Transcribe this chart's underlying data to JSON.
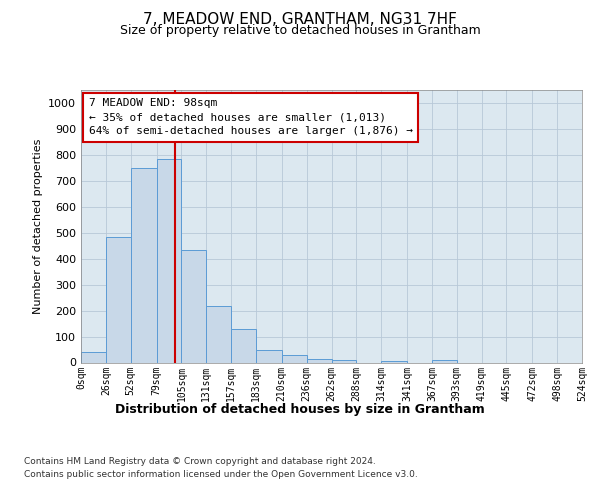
{
  "title": "7, MEADOW END, GRANTHAM, NG31 7HF",
  "subtitle": "Size of property relative to detached houses in Grantham",
  "xlabel": "Distribution of detached houses by size in Grantham",
  "ylabel": "Number of detached properties",
  "footer_line1": "Contains HM Land Registry data © Crown copyright and database right 2024.",
  "footer_line2": "Contains public sector information licensed under the Open Government Licence v3.0.",
  "bin_edges": [
    0,
    26,
    52,
    79,
    105,
    131,
    157,
    183,
    210,
    236,
    262,
    288,
    314,
    341,
    367,
    393,
    419,
    445,
    472,
    498,
    524
  ],
  "bar_heights": [
    40,
    485,
    750,
    785,
    435,
    218,
    128,
    50,
    27,
    15,
    10,
    0,
    7,
    0,
    8,
    0,
    0,
    0,
    0,
    0
  ],
  "bar_color": "#c8d8e8",
  "bar_edge_color": "#5b9bd5",
  "property_size": 98,
  "vline_color": "#cc0000",
  "annotation_line1": "7 MEADOW END: 98sqm",
  "annotation_line2": "← 35% of detached houses are smaller (1,013)",
  "annotation_line3": "64% of semi-detached houses are larger (1,876) →",
  "annotation_box_color": "#cc0000",
  "annotation_text_color": "#000000",
  "ylim": [
    0,
    1050
  ],
  "xlim": [
    0,
    524
  ],
  "bg_color": "#dce8f0",
  "grid_color": "#b8c8d8",
  "tick_labels": [
    "0sqm",
    "26sqm",
    "52sqm",
    "79sqm",
    "105sqm",
    "131sqm",
    "157sqm",
    "183sqm",
    "210sqm",
    "236sqm",
    "262sqm",
    "288sqm",
    "314sqm",
    "341sqm",
    "367sqm",
    "393sqm",
    "419sqm",
    "445sqm",
    "472sqm",
    "498sqm",
    "524sqm"
  ],
  "title_fontsize": 11,
  "subtitle_fontsize": 9,
  "ylabel_fontsize": 8,
  "xlabel_fontsize": 9,
  "tick_fontsize": 7,
  "annotation_fontsize": 8,
  "footer_fontsize": 6.5
}
